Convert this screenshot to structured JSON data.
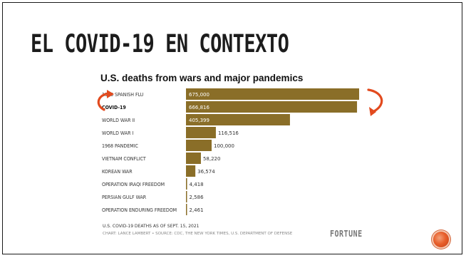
{
  "slide": {
    "title": "EL COVID-19 EN CONTEXTO"
  },
  "chart_data": {
    "type": "bar",
    "orientation": "horizontal",
    "title": "U.S. deaths from wars and major pandemics",
    "categories": [
      "1918 SPANISH FLU",
      "COVID-19",
      "WORLD WAR II",
      "WORLD WAR I",
      "1968 PANDEMIC",
      "VIETNAM CONFLICT",
      "KOREAN WAR",
      "OPERATION IRAQI FREEDOM",
      "PERSIAN GULF WAR",
      "OPERATION ENDURING FREEDOM"
    ],
    "values": [
      675000,
      666816,
      405399,
      116516,
      100000,
      58220,
      36574,
      4418,
      2586,
      2461
    ],
    "value_labels": [
      "675,000",
      "666,816",
      "405,399",
      "116,516",
      "100,000",
      "58,220",
      "36,574",
      "4,418",
      "2,586",
      "2,461"
    ],
    "highlighted_category": "COVID-19",
    "xlim": [
      0,
      675000
    ],
    "grid": false,
    "bar_color": "#8a6e28",
    "note": "U.S. COVID-19 DEATHS AS OF SEPT. 15, 2021",
    "credit": "CHART: LANCE LAMBERT • SOURCE: CDC, THE NEW YORK TIMES, U.S. DEPARTMENT OF DEFENSE",
    "brand": "FORTUNE"
  },
  "annotations": {
    "arrow_color": "#e24a1e",
    "icons": [
      "curved-arrow-left-icon",
      "curved-arrow-right-icon"
    ]
  },
  "nav": {
    "icon": "circle-button-icon",
    "color": "#e8602c"
  }
}
